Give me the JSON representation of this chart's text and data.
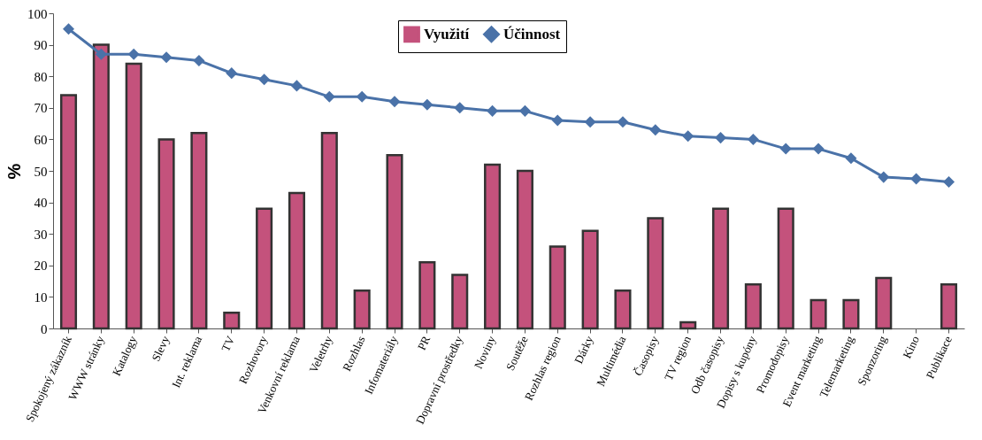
{
  "chart_data": {
    "type": "bar",
    "ylabel": "%",
    "categories": [
      "Spokojený zákazník",
      "WWW stránky",
      "Katalogy",
      "Slevy",
      "Int. reklama",
      "TV",
      "Rozhovory",
      "Venkovní reklama",
      "Veletrhy",
      "Rozhlas",
      "Infomateriály",
      "PR",
      "Dopravní prostředky",
      "Noviny",
      "Soutěže",
      "Rozhlas region",
      "Dárky",
      "Multimédia",
      "Časopisy",
      "TV region",
      "Odb časopisy",
      "Dopisy s kupóny",
      "Promodopisy",
      "Event marketing",
      "Telemarketing",
      "Sponzoring",
      "Kino",
      "Publikace"
    ],
    "series": [
      {
        "name": "Využití",
        "color": "#c4527c",
        "values": [
          74,
          90,
          84,
          60,
          62,
          5,
          38,
          43,
          62,
          12,
          55,
          21,
          17,
          52,
          50,
          26,
          31,
          12,
          35,
          2,
          38,
          14,
          38,
          9,
          9,
          16,
          null,
          14
        ]
      },
      {
        "name": "Účinnost",
        "type": "line",
        "color": "#4a72a8",
        "values": [
          95,
          87,
          87,
          86,
          85,
          81,
          79,
          77,
          73.5,
          73.5,
          72,
          71,
          70,
          69,
          69,
          66,
          65.5,
          65.5,
          63,
          61,
          60.5,
          60,
          57,
          57,
          54,
          48,
          47.5,
          46.5
        ]
      }
    ],
    "ylim": [
      0,
      100
    ],
    "yticks": [
      0,
      10,
      20,
      30,
      40,
      50,
      60,
      70,
      80,
      90,
      100
    ],
    "grid": false,
    "legend": "top",
    "marker": "diamond",
    "line_style": "solid"
  }
}
